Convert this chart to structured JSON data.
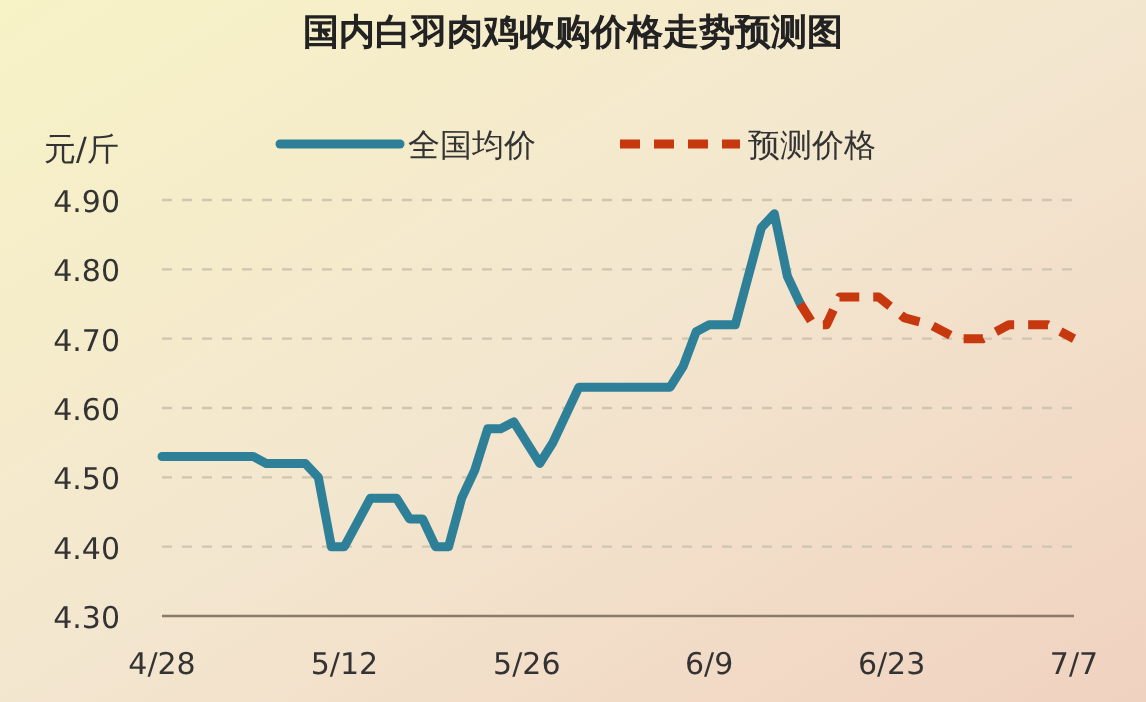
{
  "chart_data": {
    "type": "line",
    "title": "国内白羽肉鸡收购价格走势预测图",
    "ylabel": "元/斤",
    "xlim": [
      "--04-28",
      "--07-07"
    ],
    "xticks": [
      {
        "value": "--04-28",
        "label": "4/28"
      },
      {
        "value": "--05-12",
        "label": "5/12"
      },
      {
        "value": "--05-26",
        "label": "5/26"
      },
      {
        "value": "--06-09",
        "label": "6/9"
      },
      {
        "value": "--06-23",
        "label": "6/23"
      },
      {
        "value": "--07-07",
        "label": "7/7"
      }
    ],
    "ylim": [
      4.3,
      4.9
    ],
    "yticks": [
      {
        "value": 4.3,
        "label": "4.30"
      },
      {
        "value": 4.4,
        "label": "4.40"
      },
      {
        "value": 4.5,
        "label": "4.50"
      },
      {
        "value": 4.6,
        "label": "4.60"
      },
      {
        "value": 4.7,
        "label": "4.70"
      },
      {
        "value": 4.8,
        "label": "4.80"
      },
      {
        "value": 4.9,
        "label": "4.90"
      }
    ],
    "grid": "y",
    "legend": "top",
    "series": [
      {
        "name": "全国均价",
        "color": "#2e7f98",
        "line_style": "solid",
        "x": [
          "--04-28",
          "--05-05",
          "--05-06",
          "--05-09",
          "--05-10",
          "--05-11",
          "--05-12",
          "--05-14",
          "--05-16",
          "--05-17",
          "--05-18",
          "--05-19",
          "--05-20",
          "--05-21",
          "--05-22",
          "--05-23",
          "--05-24",
          "--05-25",
          "--05-27",
          "--05-28",
          "--05-29",
          "--05-30",
          "--06-06",
          "--06-07",
          "--06-08",
          "--06-09",
          "--06-11",
          "--06-13",
          "--06-14",
          "--06-15",
          "--06-16"
        ],
        "values": [
          4.53,
          4.53,
          4.52,
          4.52,
          4.5,
          4.4,
          4.4,
          4.47,
          4.47,
          4.44,
          4.44,
          4.4,
          4.4,
          4.47,
          4.51,
          4.57,
          4.57,
          4.58,
          4.52,
          4.55,
          4.59,
          4.63,
          4.63,
          4.66,
          4.71,
          4.72,
          4.72,
          4.86,
          4.88,
          4.79,
          4.75
        ]
      },
      {
        "name": "预测价格",
        "color": "#c8380f",
        "line_style": "dashed",
        "x": [
          "--06-16",
          "--06-17",
          "--06-18",
          "--06-19",
          "--06-22",
          "--06-24",
          "--06-26",
          "--06-28",
          "--06-30",
          "--07-02",
          "--07-05",
          "--07-07"
        ],
        "values": [
          4.75,
          4.72,
          4.72,
          4.76,
          4.76,
          4.73,
          4.72,
          4.7,
          4.7,
          4.72,
          4.72,
          4.7
        ]
      }
    ]
  }
}
